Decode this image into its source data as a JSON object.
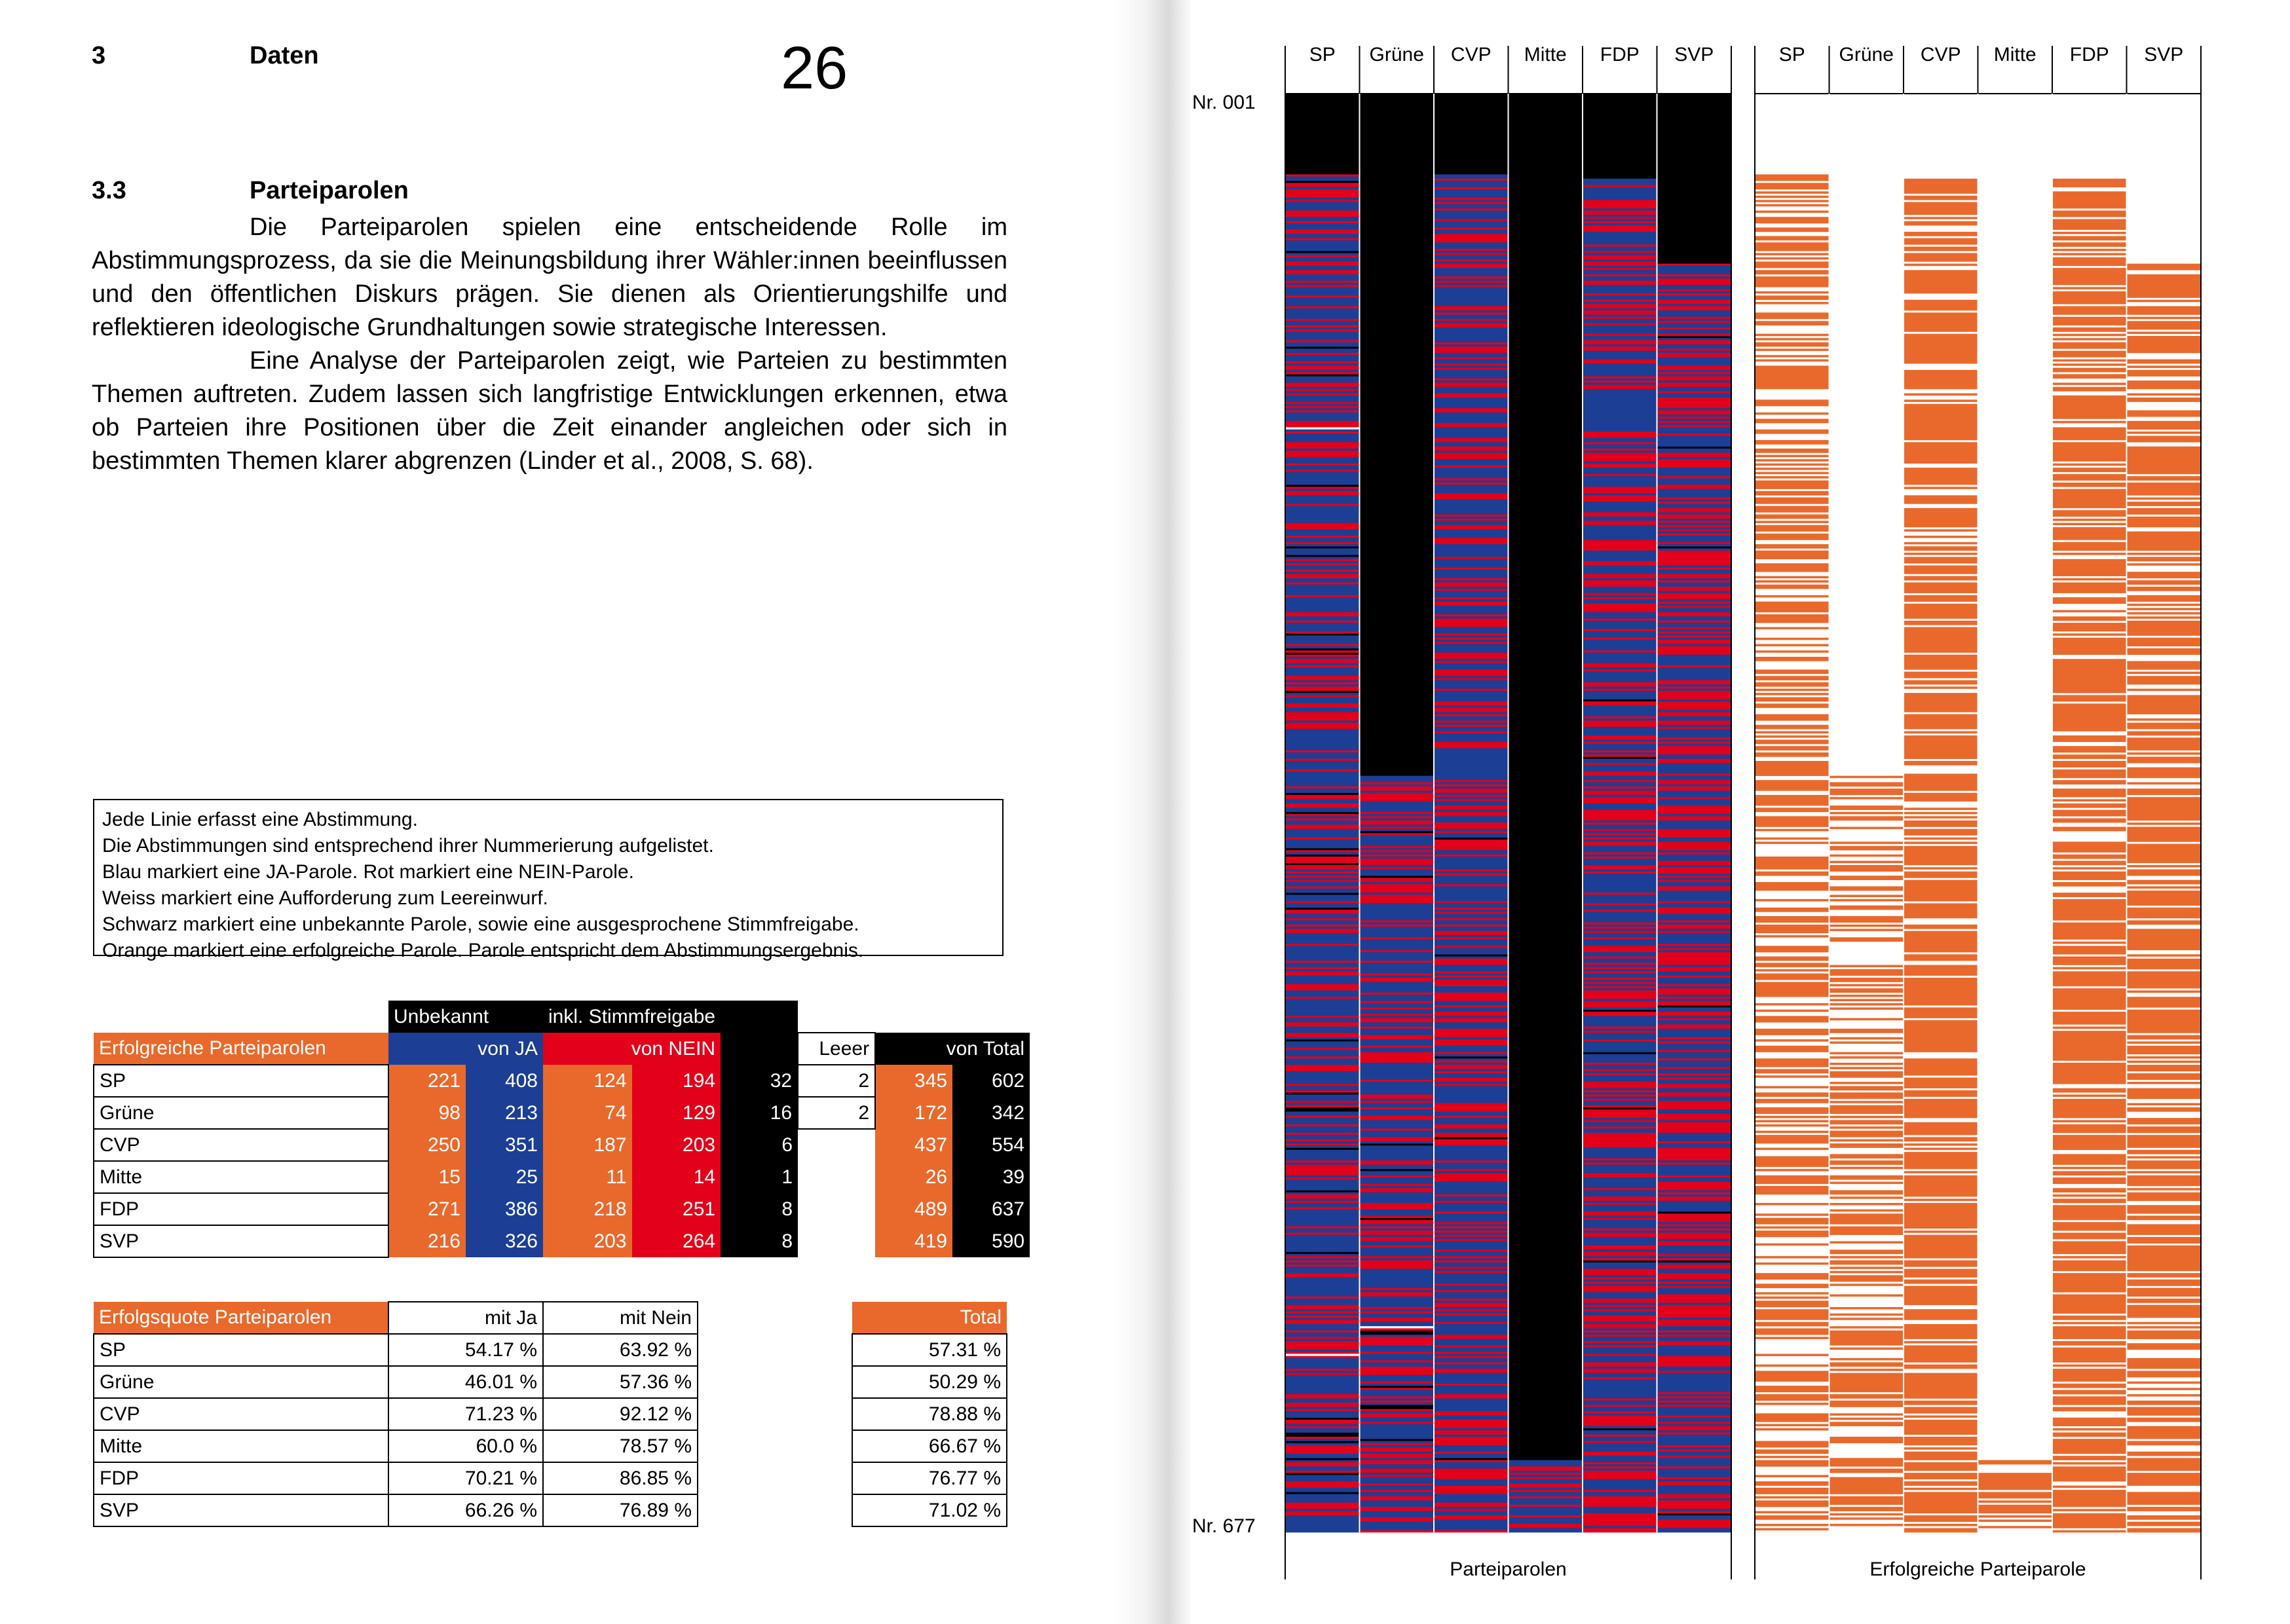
{
  "header": {
    "chapter_number": "3",
    "chapter_title": "Daten",
    "page_number": "26"
  },
  "section": {
    "number": "3.3",
    "title": "Parteiparolen",
    "paragraph1": "Die Parteiparolen spielen eine entscheidende Rolle im Abstimmungsprozess, da sie die Meinungsbildung ihrer Wähler:innen beeinflussen und den öffentlichen Diskurs prägen. Sie dienen als Orientierungshilfe und reflektieren ideologische Grundhaltungen sowie strategische Interessen.",
    "paragraph2": "Eine Analyse der Parteiparolen zeigt, wie Parteien zu bestimmten Themen auftreten. Zudem lassen sich langfristige Entwicklungen erkennen, etwa ob Parteien ihre Positionen über die Zeit einander angleichen oder sich in bestimmten Themen klarer abgrenzen (Linder et al., 2008, S. 68)."
  },
  "legend": {
    "lines": [
      "Jede Linie erfasst eine Abstimmung.",
      "Die Abstimmungen sind entsprechend ihrer Nummerierung aufgelistet.",
      "Blau markiert eine JA-Parole. Rot markiert eine NEIN-Parole.",
      "Weiss markiert eine Aufforderung zum Leereinwurf.",
      "Schwarz markiert eine unbekannte Parole, sowie eine ausgesprochene Stimmfreigabe.",
      "Orange markiert eine erfolgreiche Parole. Parole entspricht dem Abstimmungsergebnis."
    ]
  },
  "table1": {
    "super_header_unknown": "Unbekannt",
    "super_header_free": "inkl. Stimmfreigabe",
    "title": "Erfolgreiche Parteiparolen",
    "col_ja": "von JA",
    "col_nein": "von NEIN",
    "col_leer": "Leeer",
    "col_total": "von Total",
    "rows": [
      {
        "party": "SP",
        "ja_succ": "221",
        "ja_tot": "408",
        "nein_succ": "124",
        "nein_tot": "194",
        "unknown": "32",
        "leer": "2",
        "succ_total": "345",
        "total": "602"
      },
      {
        "party": "Grüne",
        "ja_succ": "98",
        "ja_tot": "213",
        "nein_succ": "74",
        "nein_tot": "129",
        "unknown": "16",
        "leer": "2",
        "succ_total": "172",
        "total": "342"
      },
      {
        "party": "CVP",
        "ja_succ": "250",
        "ja_tot": "351",
        "nein_succ": "187",
        "nein_tot": "203",
        "unknown": "6",
        "leer": "",
        "succ_total": "437",
        "total": "554"
      },
      {
        "party": "Mitte",
        "ja_succ": "15",
        "ja_tot": "25",
        "nein_succ": "11",
        "nein_tot": "14",
        "unknown": "1",
        "leer": "",
        "succ_total": "26",
        "total": "39"
      },
      {
        "party": "FDP",
        "ja_succ": "271",
        "ja_tot": "386",
        "nein_succ": "218",
        "nein_tot": "251",
        "unknown": "8",
        "leer": "",
        "succ_total": "489",
        "total": "637"
      },
      {
        "party": "SVP",
        "ja_succ": "216",
        "ja_tot": "326",
        "nein_succ": "203",
        "nein_tot": "264",
        "unknown": "8",
        "leer": "",
        "succ_total": "419",
        "total": "590"
      }
    ]
  },
  "table2": {
    "title": "Erfolgsquote Parteiparolen",
    "col_ja": "mit Ja",
    "col_nein": "mit Nein",
    "col_total": "Total",
    "rows": [
      {
        "party": "SP",
        "ja": "54.17 %",
        "nein": "63.92 %",
        "total": "57.31 %"
      },
      {
        "party": "Grüne",
        "ja": "46.01 %",
        "nein": "57.36 %",
        "total": "50.29 %"
      },
      {
        "party": "CVP",
        "ja": "71.23 %",
        "nein": "92.12 %",
        "total": "78.88 %"
      },
      {
        "party": "Mitte",
        "ja": "60.0 %",
        "nein": "78.57 %",
        "total": "66.67 %"
      },
      {
        "party": "FDP",
        "ja": "70.21 %",
        "nein": "86.85 %",
        "total": "76.77 %"
      },
      {
        "party": "SVP",
        "ja": "66.26 %",
        "nein": "76.89 %",
        "total": "71.02 %"
      }
    ]
  },
  "chart_data": {
    "type": "heatmap",
    "parties": [
      "SP",
      "Grüne",
      "CVP",
      "Mitte",
      "FDP",
      "SVP"
    ],
    "row_first_label": "Nr. 001",
    "row_last_label": "Nr. 677",
    "n_votes": 677,
    "panel1_label": "Parteiparolen",
    "panel2_label": "Erfolgreiche Parteiparole",
    "data_start_vote": [
      38,
      321,
      38,
      643,
      40,
      80
    ],
    "colors": {
      "ja": "#1C3F95",
      "nein": "#E2001A",
      "leer": "#FFFFFF",
      "unknown": "#000000",
      "success": "#E9692C"
    },
    "series_counts": [
      {
        "party": "SP",
        "ja": 408,
        "nein": 194,
        "unknown_free": 32,
        "leer": 2,
        "success": 345
      },
      {
        "party": "Grüne",
        "ja": 213,
        "nein": 129,
        "unknown_free": 16,
        "leer": 2,
        "success": 172
      },
      {
        "party": "CVP",
        "ja": 351,
        "nein": 203,
        "unknown_free": 6,
        "leer": 0,
        "success": 437
      },
      {
        "party": "Mitte",
        "ja": 25,
        "nein": 14,
        "unknown_free": 1,
        "leer": 0,
        "success": 26
      },
      {
        "party": "FDP",
        "ja": 386,
        "nein": 251,
        "unknown_free": 8,
        "leer": 0,
        "success": 489
      },
      {
        "party": "SVP",
        "ja": 326,
        "nein": 264,
        "unknown_free": 8,
        "leer": 0,
        "success": 419
      }
    ]
  }
}
